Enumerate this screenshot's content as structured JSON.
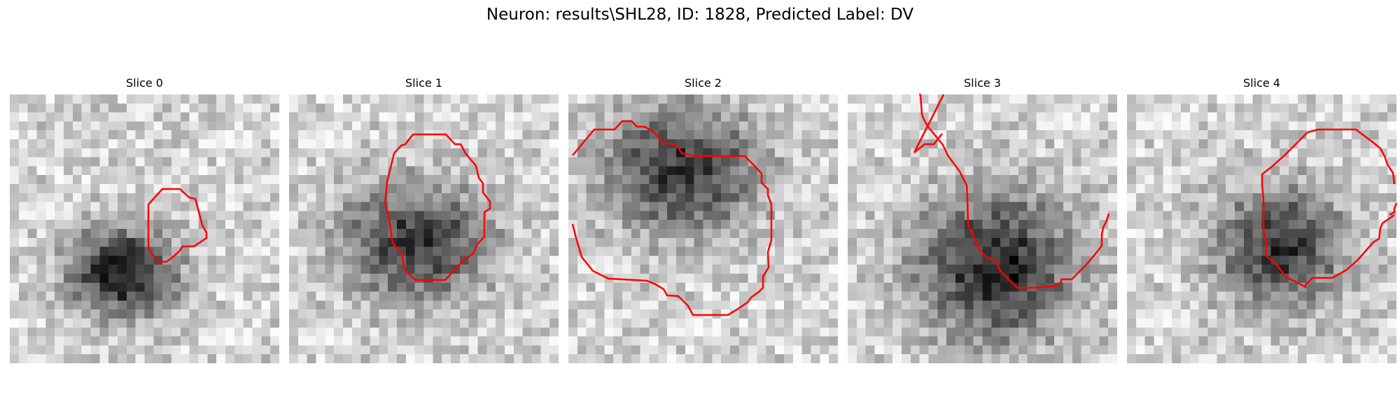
{
  "figure": {
    "title": "Neuron: results\\SHL28, ID: 1828, Predicted Label: DV"
  },
  "colors": {
    "background": "#ffffff",
    "contour": "#ff0000",
    "colormap": "gray_r"
  },
  "slices": [
    {
      "title": "Slice 0"
    },
    {
      "title": "Slice 1"
    },
    {
      "title": "Slice 2"
    },
    {
      "title": "Slice 3"
    },
    {
      "title": "Slice 4"
    }
  ]
}
